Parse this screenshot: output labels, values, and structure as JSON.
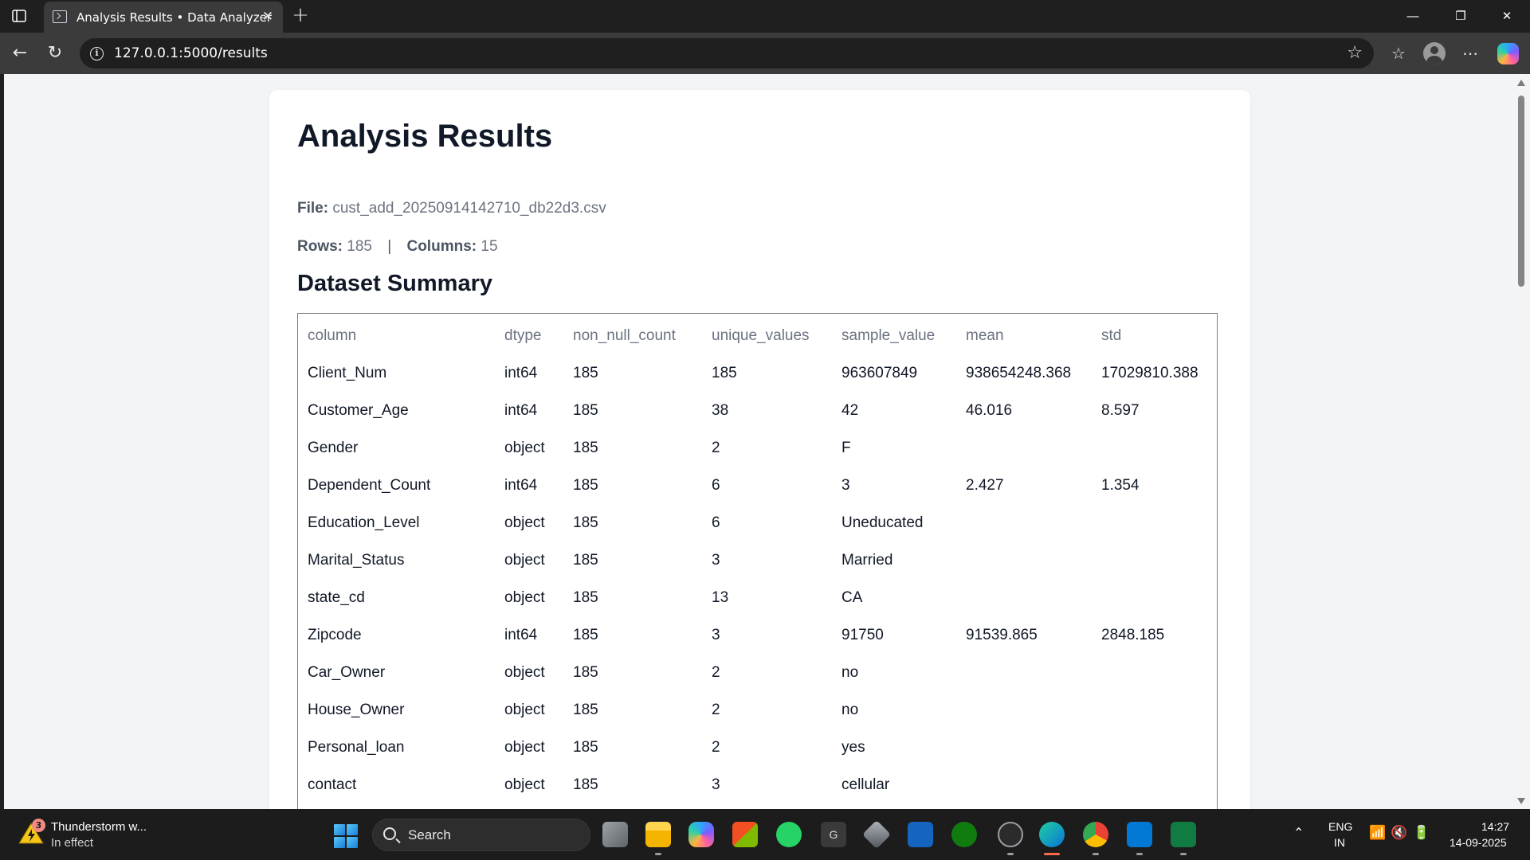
{
  "browser": {
    "tab_title": "Analysis Results • Data Analyzer",
    "url": "127.0.0.1:5000/results"
  },
  "page": {
    "title": "Analysis Results",
    "file_label": "File:",
    "file_name": "cust_add_20250914142710_db22d3.csv",
    "rows_label": "Rows:",
    "rows_value": "185",
    "separator": "|",
    "columns_label": "Columns:",
    "columns_value": "15",
    "summary_title": "Dataset Summary"
  },
  "summary_table": {
    "headers": [
      "column",
      "dtype",
      "non_null_count",
      "unique_values",
      "sample_value",
      "mean",
      "std"
    ],
    "rows": [
      [
        "Client_Num",
        "int64",
        "185",
        "185",
        "963607849",
        "938654248.368",
        "17029810.388"
      ],
      [
        "Customer_Age",
        "int64",
        "185",
        "38",
        "42",
        "46.016",
        "8.597"
      ],
      [
        "Gender",
        "object",
        "185",
        "2",
        "F",
        "",
        ""
      ],
      [
        "Dependent_Count",
        "int64",
        "185",
        "6",
        "3",
        "2.427",
        "1.354"
      ],
      [
        "Education_Level",
        "object",
        "185",
        "6",
        "Uneducated",
        "",
        ""
      ],
      [
        "Marital_Status",
        "object",
        "185",
        "3",
        "Married",
        "",
        ""
      ],
      [
        "state_cd",
        "object",
        "185",
        "13",
        "CA",
        "",
        ""
      ],
      [
        "Zipcode",
        "int64",
        "185",
        "3",
        "91750",
        "91539.865",
        "2848.185"
      ],
      [
        "Car_Owner",
        "object",
        "185",
        "2",
        "no",
        "",
        ""
      ],
      [
        "House_Owner",
        "object",
        "185",
        "2",
        "no",
        "",
        ""
      ],
      [
        "Personal_loan",
        "object",
        "185",
        "2",
        "yes",
        "",
        ""
      ],
      [
        "contact",
        "object",
        "185",
        "3",
        "cellular",
        "",
        ""
      ]
    ]
  },
  "taskbar": {
    "weather_badge": "3",
    "weather_title": "Thunderstorm w...",
    "weather_subtitle": "In effect",
    "search_label": "Search",
    "language": "ENG",
    "region": "IN",
    "time": "14:27",
    "date": "14-09-2025"
  }
}
